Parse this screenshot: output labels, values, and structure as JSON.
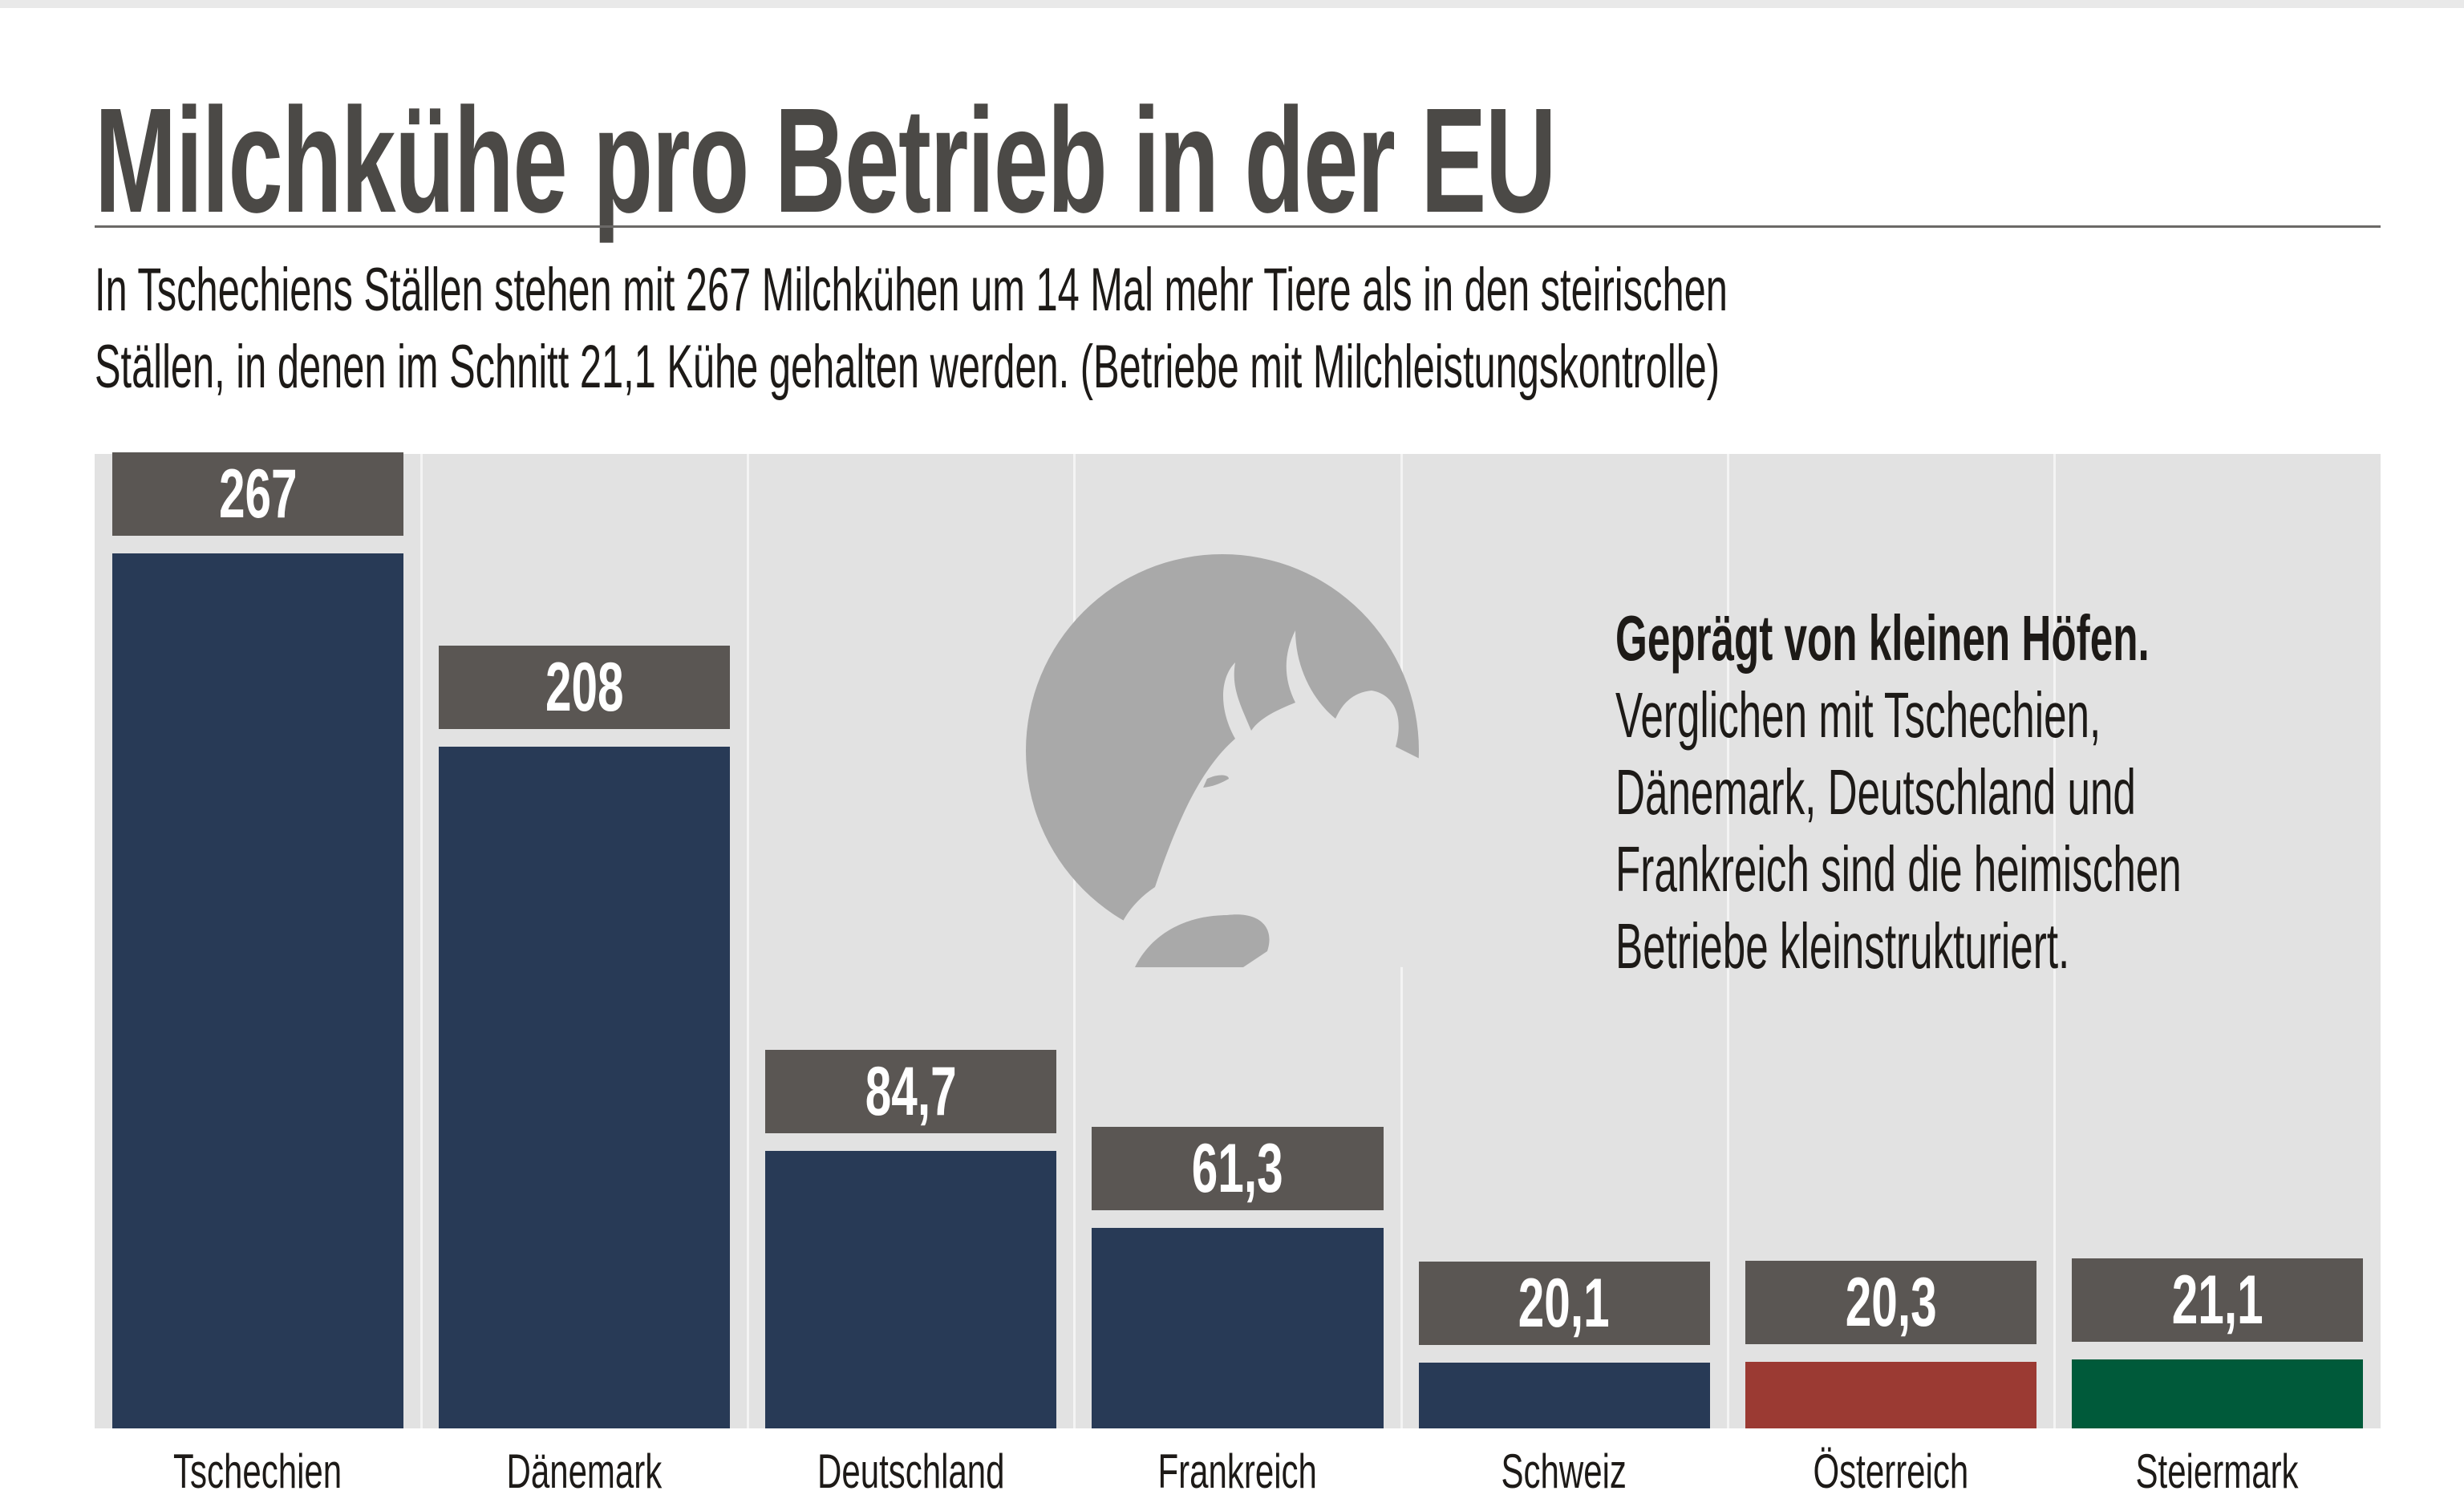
{
  "chart_data": {
    "type": "bar",
    "title": "Milchkühe pro Betrieb in der EU",
    "subtitle": [
      "In Tschechiens Ställen stehen mit 267 Milchkühen um 14 Mal mehr Tiere als in den steirischen",
      "Ställen, in denen im Schnitt 21,1 Kühe gehalten werden. (Betriebe mit Milchleistungskontrolle)"
    ],
    "categories": [
      "Tschechien",
      "Dänemark",
      "Deutschland",
      "Frankreich",
      "Schweiz",
      "Österreich",
      "Steiermark"
    ],
    "values": [
      267,
      208,
      84.7,
      61.3,
      20.1,
      20.3,
      21.1
    ],
    "value_labels": [
      "267",
      "208",
      "84,7",
      "61,3",
      "20,1",
      "20,3",
      "21,1"
    ],
    "bar_colors": [
      "#283a56",
      "#283a56",
      "#283a56",
      "#283a56",
      "#283a56",
      "#9b3a33",
      "#005a3a"
    ],
    "label_box_color": "#5a5653",
    "background_color": "#e2e2e2",
    "ylim": [
      0,
      267
    ],
    "grid": false,
    "xlabel": "",
    "ylabel": "",
    "annotation": {
      "heading": "Geprägt von kleinen Höfen.",
      "lines": [
        "Verglichen mit Tschechien,",
        "Dänemark, Deutschland und",
        "Frankreich sind die heimischen",
        "Betriebe kleinstrukturiert."
      ]
    },
    "icon": "cow-head-icon"
  }
}
